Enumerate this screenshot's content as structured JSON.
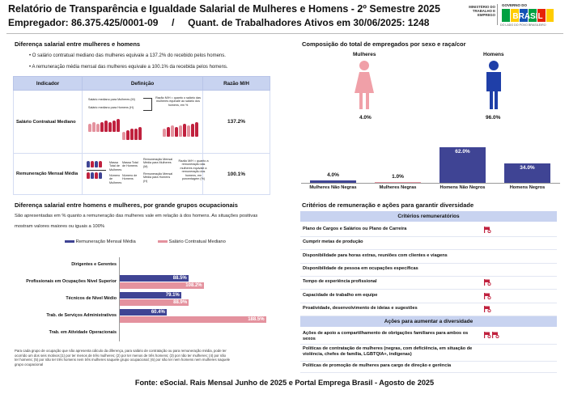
{
  "header": {
    "title": "Relatório de Transparência e Igualdade Salarial de Mulheres e Homens - 2º Semestre 2025",
    "employer_line": "Empregador: 86.375.425/0001-09     /     Quant. de Trabalhadores Ativos em 30/06/2025: 1248",
    "ministry": "MINISTÉRIO DO TRABALHO E EMPREGO",
    "gov_word": "GOVERNO DO",
    "gov_brasil": "BRASIL",
    "gov_foot": "DO LADO DO POVO BRASILEIRO",
    "colors": {
      "green": "#00a040",
      "yellow": "#ffcc00",
      "blue": "#1351b4",
      "red": "#e52207"
    }
  },
  "salary_diff": {
    "title": "Diferença salarial entre mulheres e homens",
    "bullets": [
      "O salário contratual mediano das mulheres equivale a 137.2% do recebido pelos homens.",
      "A remuneração média mensal das mulheres equivale a 100.1% da recebida pelos homens."
    ],
    "table": {
      "headers": [
        "Indicador",
        "Definição",
        "Razão M/H"
      ],
      "rows": [
        {
          "name": "Salário Contratual Mediano",
          "ratio": "137.2%",
          "def_left": [
            "Salário mediano para Mulheres (M)",
            "Salário mediano para Homens (H)"
          ],
          "def_right": "Razão M/H = quanto o salário das mulheres equivale ao salário dos homens, em %"
        },
        {
          "name": "Remuneração Mensal Média",
          "ratio": "100.1%",
          "def_left": [
            "Massa Total de Mulheres",
            "Número de Mulheres"
          ],
          "def_mid": [
            "Massa Total de Homens",
            "Número de Homens"
          ],
          "def_eq": [
            "Remuneração Mensal Média para Mulheres (M)",
            "Remuneração Mensal Média para Homens (H)"
          ],
          "def_right": "Razão M/H = quanto a remuneração das mulheres equivale a remuneração dos homens, em porcentagem (%)"
        }
      ]
    }
  },
  "occupational": {
    "title": "Diferença salarial entre homens e mulheres, por grande grupos ocupacionais",
    "desc": [
      "São apresentadas em % quanto a remuneração das mulheres vale em relação à dos homens. As situações positivas",
      "mostram valores maiores ou iguais a 100%"
    ],
    "legend": [
      "Remuneração Mensal Média",
      "Salário Contratual Mediano"
    ],
    "notes": [
      "Para cada grupo de ocupação que não apresenta cálculo da diferença, para salário de contratação ou para remuneração média, pode ter",
      "ocorrido um dos seis motivos:(1) por ter menos de três mulheres; (2) por ter menos de três homens; (3) por não ter mulheres; (4) por não",
      "ter homens; (5) por não ter três homens nem três mulheres naquele grupo ocupacional; (6) por não ter nem homens nem mulheres naquele",
      "grupo ocupacional"
    ]
  },
  "chart_data": [
    {
      "type": "bar",
      "title": "Diferença salarial entre homens e mulheres, por grande grupos ocupacionais",
      "categories": [
        "Dirigentes e Gerentes",
        "Profissionais em Ocupações Nível Superior",
        "Técnicos de Nível Médio",
        "Trab. de Serviços Administrativos",
        "Trab. em Atividade Operacionais"
      ],
      "series": [
        {
          "name": "Remuneração Mensal Média",
          "color": "#3f4494",
          "values": [
            null,
            88.5,
            79.1,
            60.4,
            null
          ],
          "labels": [
            "",
            "88.5%",
            "79.1%",
            "60.4%",
            ""
          ]
        },
        {
          "name": "Salário Contratual Mediano",
          "color": "#e4929e",
          "values": [
            null,
            108.2,
            88.9,
            188.5,
            null
          ],
          "labels": [
            "",
            "108.2%",
            "88.9%",
            "188.5%",
            ""
          ]
        }
      ],
      "xlim": [
        0,
        190
      ]
    },
    {
      "type": "bar",
      "title": "Composição do total de empregados por sexo e raça/cor",
      "categories": [
        "Mulheres Não Negras",
        "Mulheres Negras",
        "Homens Não Negros",
        "Homens Negros"
      ],
      "values": [
        4.0,
        1.0,
        62.0,
        34.0
      ],
      "labels": [
        "4.0%",
        "1.0%",
        "62.0%",
        "34.0%"
      ],
      "ylim": [
        0,
        62
      ]
    }
  ],
  "composition": {
    "title": "Composição do total de empregados por sexo e raça/cor",
    "women_label": "Mulheres",
    "women_pct": "4.0%",
    "men_label": "Homens",
    "men_pct": "96.0%",
    "colors": {
      "women": "#f0a0a8",
      "men": "#1f3fa8",
      "bars": "#3f4494",
      "low_bar": "#e4929e"
    }
  },
  "criteria": {
    "title": "Critérios de remuneração e ações para garantir diversidade",
    "remuneration_header": "Critérios remuneratórios",
    "remuneration": [
      {
        "label": "Plano de Cargos e Salários ou Plano de Carreira",
        "flag": true
      },
      {
        "label": "Cumprir metas de produção",
        "flag": false
      },
      {
        "label": "Disponibilidade para horas extras, reuniões com clientes e viagens",
        "flag": false
      },
      {
        "label": "Disponibilidade de pessoa em ocupações específicas",
        "flag": false
      },
      {
        "label": "Tempo de experiência profissional",
        "flag": true
      },
      {
        "label": "Capacidade de trabalho em equipe",
        "flag": true
      },
      {
        "label": "Proatividade, desenvolvimento de ideias e sugestões",
        "flag": true
      }
    ],
    "actions_header": "Ações para aumentar a diversidade",
    "actions": [
      {
        "label": "Ações de apoio a compartilhamento de obrigações familiares para ambos os sexos",
        "flags": 2
      },
      {
        "label": "Políticas de contratação de mulheres (negras, com deficiência, em situação de violência, chefes de família, LGBTQIA+, indígenas)",
        "flags": 0
      },
      {
        "label": "Políticas de promoção de mulheres para cargo de direção e gerência",
        "flags": 0
      }
    ]
  },
  "footer": "Fonte: eSocial. Rais Mensal Junho de 2025 e Portal Emprega Brasil - Agosto de 2025"
}
